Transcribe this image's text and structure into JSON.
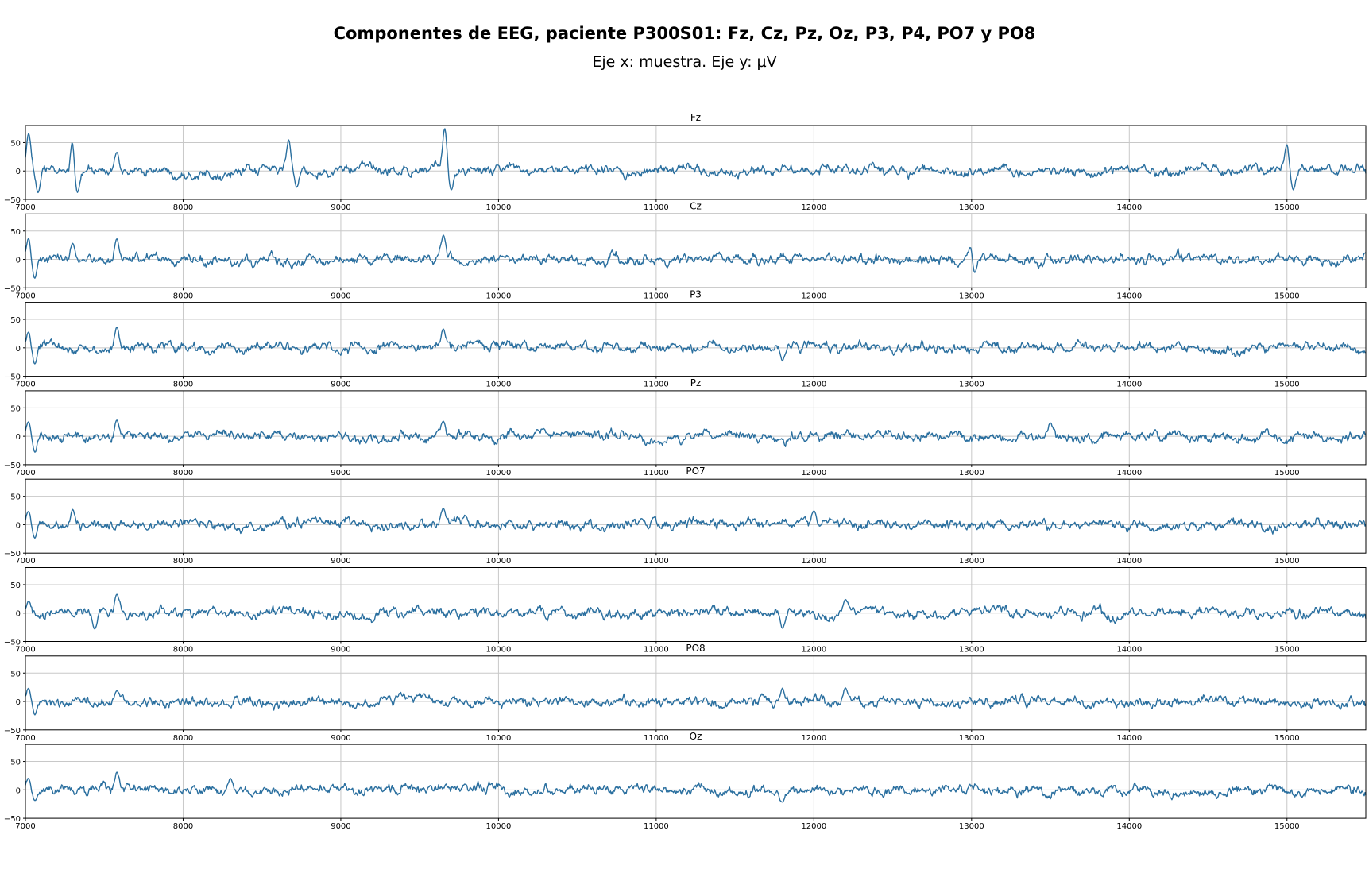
{
  "title": "Componentes de EEG, paciente P300S01: Fz, Cz, Pz, Oz, P3, P4, PO7 y PO8",
  "subtitle": "Eje x: muestra. Eje y: µV",
  "colors": {
    "line": "#2a6f9f",
    "grid": "#c8c8c8",
    "axis": "#000000"
  },
  "chart_data": {
    "type": "line",
    "xlim": [
      7000,
      15500
    ],
    "ylim": [
      -50,
      80
    ],
    "xticks": [
      7000,
      8000,
      9000,
      10000,
      11000,
      12000,
      13000,
      14000,
      15000
    ],
    "yticks": [
      -50,
      0,
      50
    ],
    "grid": true,
    "series": [
      {
        "name": "Fz",
        "events": [
          [
            7020,
            70
          ],
          [
            7080,
            -40
          ],
          [
            7300,
            60
          ],
          [
            7330,
            -40
          ],
          [
            7580,
            35
          ],
          [
            8670,
            58
          ],
          [
            8720,
            -30
          ],
          [
            9660,
            80
          ],
          [
            9700,
            -35
          ],
          [
            15000,
            50
          ],
          [
            15040,
            -35
          ]
        ]
      },
      {
        "name": "Cz",
        "events": [
          [
            7020,
            40
          ],
          [
            7060,
            -35
          ],
          [
            7300,
            30
          ],
          [
            7580,
            38
          ],
          [
            9650,
            45
          ],
          [
            13000,
            35
          ],
          [
            13020,
            -25
          ]
        ]
      },
      {
        "name": "P3",
        "events": [
          [
            7020,
            30
          ],
          [
            7060,
            -30
          ],
          [
            7580,
            38
          ],
          [
            9650,
            35
          ],
          [
            11800,
            -25
          ]
        ]
      },
      {
        "name": "Pz",
        "events": [
          [
            7020,
            28
          ],
          [
            7060,
            -30
          ],
          [
            7580,
            30
          ],
          [
            9650,
            28
          ],
          [
            13500,
            25
          ]
        ]
      },
      {
        "name": "PO7",
        "events": [
          [
            7020,
            25
          ],
          [
            7060,
            -25
          ],
          [
            7300,
            28
          ],
          [
            9650,
            30
          ],
          [
            12000,
            25
          ]
        ]
      },
      {
        "name": "",
        "events": [
          [
            7020,
            22
          ],
          [
            7580,
            35
          ],
          [
            7440,
            -30
          ],
          [
            11800,
            -28
          ],
          [
            12200,
            25
          ]
        ]
      },
      {
        "name": "PO8",
        "events": [
          [
            7020,
            25
          ],
          [
            7060,
            -25
          ],
          [
            7580,
            20
          ],
          [
            11800,
            25
          ],
          [
            12200,
            25
          ]
        ]
      },
      {
        "name": "Oz",
        "events": [
          [
            7020,
            22
          ],
          [
            7060,
            -20
          ],
          [
            7580,
            33
          ],
          [
            8300,
            22
          ],
          [
            11800,
            -22
          ]
        ]
      }
    ]
  }
}
